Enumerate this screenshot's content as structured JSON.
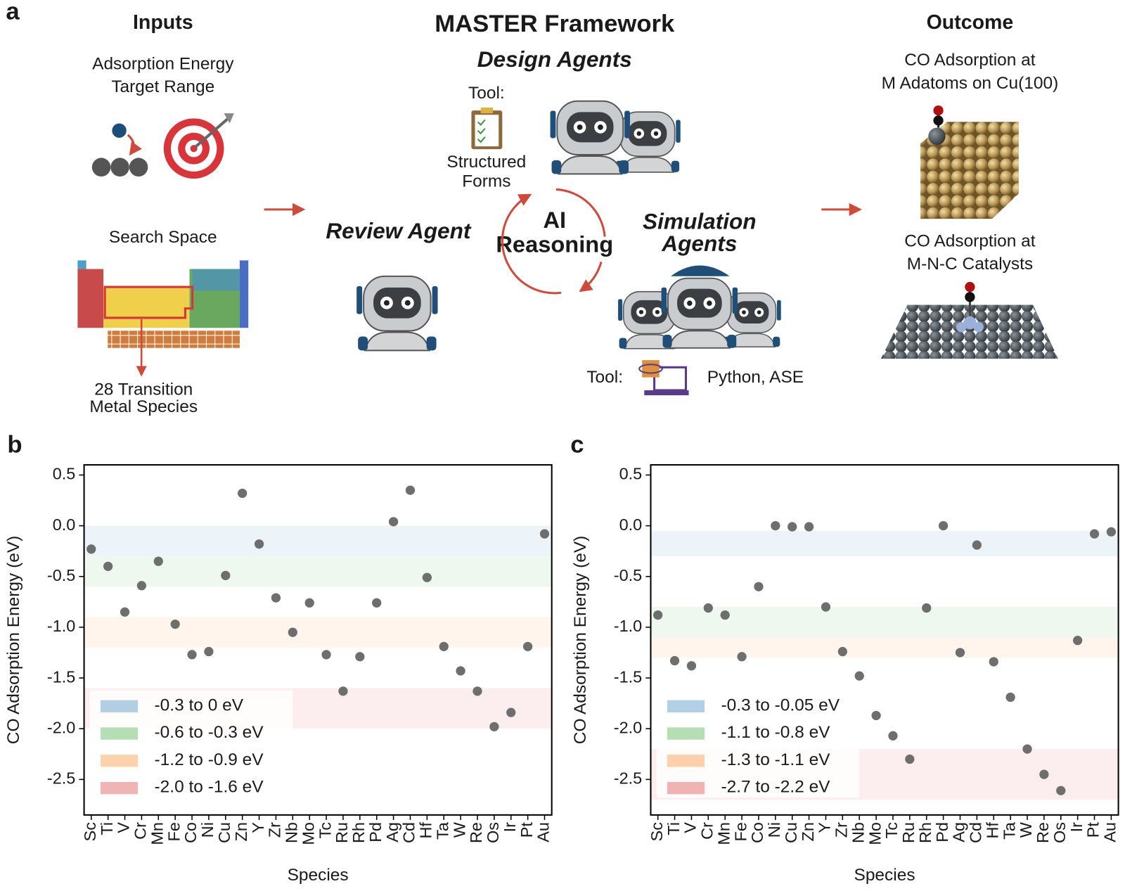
{
  "panel_a": {
    "label": "a",
    "title": "MASTER Framework",
    "inputs": {
      "heading": "Inputs",
      "target_range": [
        "Adsorption Energy",
        "Target Range"
      ],
      "search_space": "Search Space",
      "species": [
        "28 Transition",
        "Metal Species"
      ]
    },
    "design_agents": {
      "heading": "Design Agents",
      "tool": "Tool:",
      "tool_name": [
        "Structured",
        "Forms"
      ]
    },
    "review_agent": "Review Agent",
    "reasoning": [
      "AI",
      "Reasoning"
    ],
    "simulation_agents": {
      "heading": [
        "Simulation",
        "Agents"
      ],
      "tool": "Tool:",
      "tool_name": "Python, ASE"
    },
    "outcome": {
      "heading": "Outcome",
      "cu": [
        "CO Adsorption at",
        "M Adatoms on Cu(100)"
      ],
      "mnc": [
        "CO Adsorption at",
        "M-N-C Catalysts"
      ]
    }
  },
  "chart_data": [
    {
      "type": "scatter",
      "label": "b",
      "xlabel": "Species",
      "ylabel": "CO Adsorption Energy (eV)",
      "color": "#6e6e6e",
      "categories": [
        "Sc",
        "Ti",
        "V",
        "Cr",
        "Mn",
        "Fe",
        "Co",
        "Ni",
        "Cu",
        "Zn",
        "Y",
        "Zr",
        "Nb",
        "Mo",
        "Tc",
        "Ru",
        "Rh",
        "Pd",
        "Ag",
        "Cd",
        "Hf",
        "Ta",
        "W",
        "Re",
        "Os",
        "Ir",
        "Pt",
        "Au"
      ],
      "values": [
        -0.23,
        -0.4,
        -0.85,
        -0.59,
        -0.35,
        -0.97,
        -1.27,
        -1.24,
        -0.49,
        0.32,
        -0.18,
        -0.71,
        -1.05,
        -0.76,
        -1.27,
        -1.63,
        -1.29,
        -0.76,
        0.04,
        0.35,
        -0.51,
        -1.19,
        -1.43,
        -1.63,
        -1.98,
        -1.84,
        -1.19,
        -0.08
      ],
      "ylim": [
        -2.85,
        0.6
      ],
      "yticks": [
        0.5,
        {
          "value": 0,
          "label": "0.0"
        },
        -0.5,
        {
          "value": -1,
          "label": "-1.0"
        },
        -1.5,
        {
          "value": -2,
          "label": "-2.0"
        },
        -2.5
      ],
      "bands": [
        {
          "name": "-0.3 to 0 eV",
          "range": [
            -0.3,
            0
          ],
          "color": "#1f77b4"
        },
        {
          "name": "-0.6 to -0.3 eV",
          "range": [
            -0.6,
            -0.3
          ],
          "color": "#2ca02c"
        },
        {
          "name": "-1.2 to -0.9 eV",
          "range": [
            -1.2,
            -0.9
          ],
          "color": "#ff7f0e"
        },
        {
          "name": "-2.0 to -1.6 eV",
          "range": [
            -2.0,
            -1.6
          ],
          "color": "#d62728"
        }
      ],
      "legend": "lower left"
    },
    {
      "type": "scatter",
      "label": "c",
      "xlabel": "Species",
      "ylabel": "CO Adsorption Energy (eV)",
      "color": "#6e6e6e",
      "categories": [
        "Sc",
        "Ti",
        "V",
        "Cr",
        "Mn",
        "Fe",
        "Co",
        "Ni",
        "Cu",
        "Zn",
        "Y",
        "Zr",
        "Nb",
        "Mo",
        "Tc",
        "Ru",
        "Rh",
        "Pd",
        "Ag",
        "Cd",
        "Hf",
        "Ta",
        "W",
        "Re",
        "Os",
        "Ir",
        "Pt",
        "Au"
      ],
      "values": [
        -0.88,
        -1.33,
        -1.38,
        -0.81,
        -0.88,
        -1.29,
        -0.6,
        0.0,
        -0.01,
        -0.01,
        -0.8,
        -1.24,
        -1.48,
        -1.87,
        -2.07,
        -2.3,
        -0.81,
        0.0,
        -1.25,
        -0.19,
        -1.34,
        -1.69,
        -2.2,
        -2.45,
        -2.61,
        -1.13,
        -0.08,
        -0.06
      ],
      "ylim": [
        -2.85,
        0.6
      ],
      "yticks": [
        0.5,
        {
          "value": 0,
          "label": "0.0"
        },
        -0.5,
        {
          "value": -1,
          "label": "-1.0"
        },
        -1.5,
        {
          "value": -2,
          "label": "-2.0"
        },
        -2.5
      ],
      "bands": [
        {
          "name": "-0.3 to -0.05 eV",
          "range": [
            -0.3,
            -0.05
          ],
          "color": "#1f77b4"
        },
        {
          "name": "-1.1 to -0.8 eV",
          "range": [
            -1.1,
            -0.8
          ],
          "color": "#2ca02c"
        },
        {
          "name": "-1.3 to -1.1 eV",
          "range": [
            -1.3,
            -1.1
          ],
          "color": "#ff7f0e"
        },
        {
          "name": "-2.7 to -2.2 eV",
          "range": [
            -2.7,
            -2.2
          ],
          "color": "#d62728"
        }
      ],
      "legend": "lower left"
    }
  ]
}
